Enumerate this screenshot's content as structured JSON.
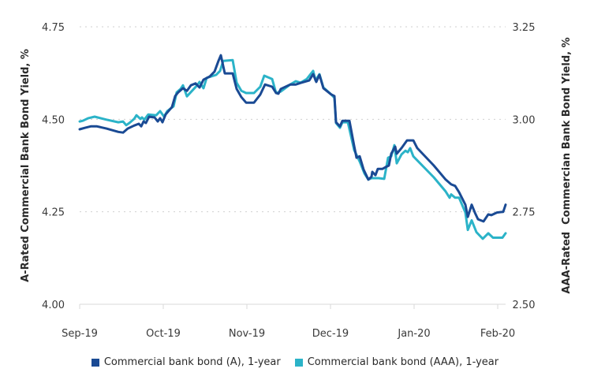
{
  "chart_data": {
    "type": "line",
    "title": "",
    "xlabel": "",
    "ylabel": "A-Rated Commercial Bank Bond Yield, %",
    "ylabel_right": "AAA-Rated  Commercian Bank Bond Yield, %",
    "x_unit": "months since Sep-19",
    "x_range": [
      0,
      5.05
    ],
    "x_ticks": [
      0,
      1,
      2,
      3,
      4,
      5
    ],
    "x_tick_labels": [
      "Sep-19",
      "Oct-19",
      "Nov-19",
      "Dec-19",
      "Jan-20",
      "Feb-20"
    ],
    "ylim": [
      4.0,
      4.75
    ],
    "y_ticks": [
      4.0,
      4.25,
      4.5,
      4.75
    ],
    "y_tick_labels": [
      "4.00",
      "4.25",
      "4.50",
      "4.75"
    ],
    "ylim_right": [
      2.5,
      3.25
    ],
    "y_ticks_right": [
      2.5,
      2.75,
      3.0,
      3.25
    ],
    "y_tick_labels_right": [
      "2.50",
      "2.75",
      "3.00",
      "3.25"
    ],
    "grid": "horizontal dotted",
    "legend_position": "bottom-center",
    "series": [
      {
        "name": "Commercial bank bond (A), 1-year",
        "axis": "left",
        "color": "#1a4a94",
        "x": [
          0,
          0.066,
          0.132,
          0.208,
          0.321,
          0.462,
          0.519,
          0.575,
          0.651,
          0.708,
          0.736,
          0.764,
          0.792,
          0.83,
          0.896,
          0.934,
          0.962,
          0.991,
          1.028,
          1.104,
          1.142,
          1.179,
          1.236,
          1.283,
          1.33,
          1.387,
          1.434,
          1.481,
          1.557,
          1.613,
          1.66,
          1.689,
          1.736,
          1.83,
          1.877,
          1.934,
          1.991,
          2.085,
          2.16,
          2.217,
          2.302,
          2.349,
          2.377,
          2.406,
          2.519,
          2.585,
          2.651,
          2.745,
          2.792,
          2.83,
          2.868,
          2.915,
          3.009,
          3.047,
          3.066,
          3.113,
          3.142,
          3.226,
          3.283,
          3.311,
          3.349,
          3.396,
          3.453,
          3.491,
          3.5,
          3.538,
          3.566,
          3.623,
          3.66,
          3.698,
          3.726,
          3.774,
          3.792,
          3.849,
          3.915,
          3.991,
          4.038,
          4.236,
          4.377,
          4.443,
          4.491,
          4.538,
          4.613,
          4.642,
          4.689,
          4.726,
          4.764,
          4.83,
          4.887,
          4.925,
          4.991,
          5.066,
          5.094
        ],
        "values": [
          4.473,
          4.477,
          4.481,
          4.481,
          4.475,
          4.466,
          4.464,
          4.475,
          4.483,
          4.488,
          4.481,
          4.494,
          4.49,
          4.507,
          4.505,
          4.494,
          4.503,
          4.492,
          4.513,
          4.533,
          4.563,
          4.573,
          4.584,
          4.577,
          4.592,
          4.597,
          4.586,
          4.607,
          4.616,
          4.629,
          4.658,
          4.673,
          4.624,
          4.624,
          4.582,
          4.56,
          4.545,
          4.545,
          4.567,
          4.594,
          4.588,
          4.571,
          4.569,
          4.582,
          4.594,
          4.594,
          4.599,
          4.605,
          4.622,
          4.601,
          4.62,
          4.584,
          4.567,
          4.563,
          4.492,
          4.481,
          4.496,
          4.496,
          4.428,
          4.396,
          4.4,
          4.364,
          4.337,
          4.345,
          4.358,
          4.349,
          4.366,
          4.366,
          4.371,
          4.375,
          4.407,
          4.426,
          4.407,
          4.422,
          4.443,
          4.443,
          4.422,
          4.375,
          4.337,
          4.324,
          4.32,
          4.303,
          4.269,
          4.236,
          4.269,
          4.248,
          4.23,
          4.224,
          4.243,
          4.241,
          4.248,
          4.25,
          4.269
        ]
      },
      {
        "name": "Commercial bank bond (AAA), 1-year",
        "axis": "right",
        "color": "#2bb3c8",
        "x": [
          0,
          0.038,
          0.104,
          0.179,
          0.321,
          0.462,
          0.519,
          0.557,
          0.594,
          0.651,
          0.679,
          0.726,
          0.745,
          0.774,
          0.821,
          0.915,
          0.962,
          1.009,
          1.047,
          1.123,
          1.16,
          1.208,
          1.236,
          1.283,
          1.406,
          1.434,
          1.481,
          1.519,
          1.632,
          1.679,
          1.717,
          1.83,
          1.877,
          1.934,
          1.991,
          2.085,
          2.16,
          2.208,
          2.302,
          2.349,
          2.406,
          2.519,
          2.585,
          2.642,
          2.717,
          2.792,
          2.821,
          2.868,
          2.915,
          3.009,
          3.047,
          3.066,
          3.113,
          3.142,
          3.208,
          3.283,
          3.349,
          3.406,
          3.453,
          3.491,
          3.575,
          3.642,
          3.689,
          3.726,
          3.764,
          3.792,
          3.849,
          3.896,
          3.925,
          3.953,
          3.991,
          4.236,
          4.377,
          4.425,
          4.443,
          4.491,
          4.538,
          4.613,
          4.642,
          4.689,
          4.745,
          4.821,
          4.887,
          4.943,
          5.057,
          5.094
        ],
        "values": [
          2.994,
          2.996,
          3.003,
          3.007,
          2.999,
          2.992,
          2.994,
          2.984,
          2.99,
          3.001,
          3.011,
          3.001,
          3.005,
          2.999,
          3.013,
          3.011,
          3.022,
          3.007,
          3.022,
          3.035,
          3.073,
          3.082,
          3.092,
          3.062,
          3.092,
          3.101,
          3.084,
          3.112,
          3.12,
          3.131,
          3.158,
          3.16,
          3.099,
          3.077,
          3.071,
          3.071,
          3.088,
          3.118,
          3.109,
          3.071,
          3.075,
          3.094,
          3.103,
          3.099,
          3.109,
          3.131,
          3.105,
          3.122,
          3.086,
          3.067,
          3.058,
          2.99,
          2.977,
          2.992,
          2.992,
          2.917,
          2.886,
          2.854,
          2.837,
          2.841,
          2.841,
          2.839,
          2.896,
          2.9,
          2.93,
          2.881,
          2.905,
          2.915,
          2.911,
          2.922,
          2.9,
          2.843,
          2.805,
          2.788,
          2.797,
          2.788,
          2.788,
          2.748,
          2.701,
          2.727,
          2.695,
          2.677,
          2.692,
          2.68,
          2.68,
          2.692
        ]
      }
    ]
  }
}
